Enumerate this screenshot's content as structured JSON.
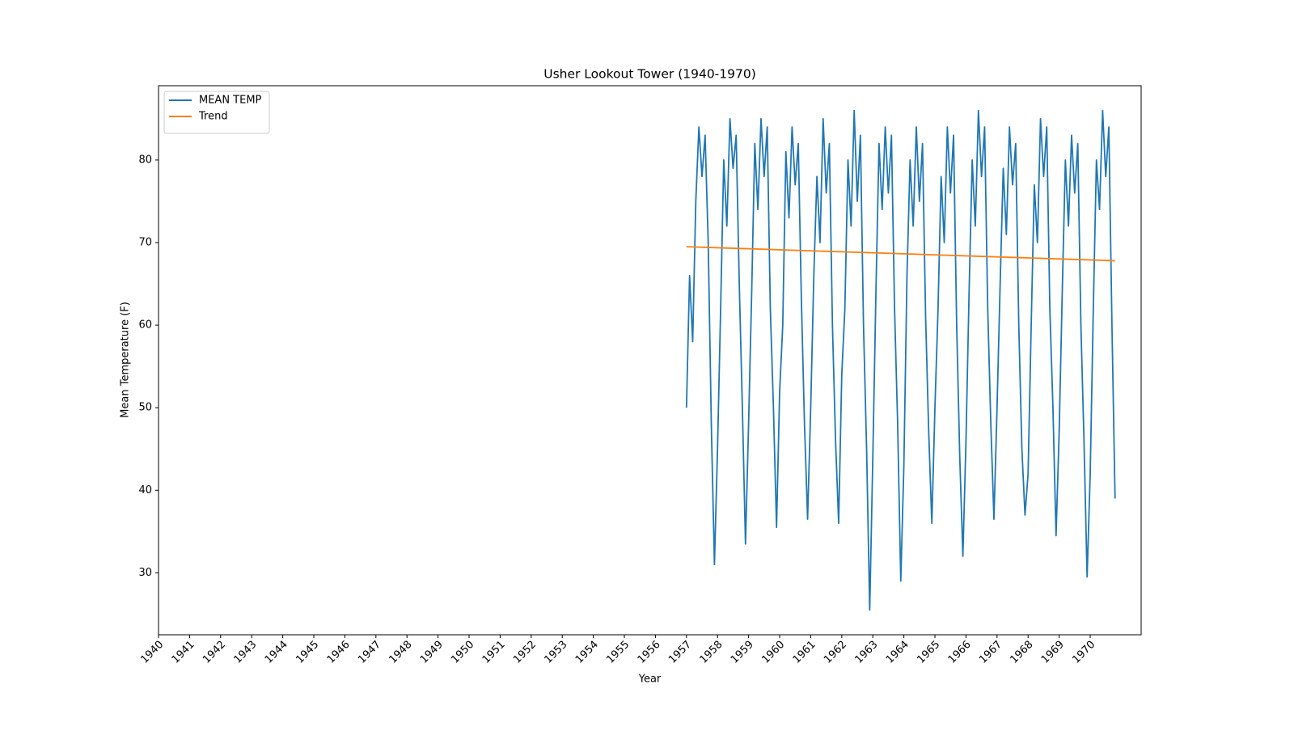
{
  "chart_data": {
    "type": "line",
    "title": "Usher Lookout Tower (1940-1970)",
    "xlabel": "Year",
    "ylabel": "Mean Temperature (F)",
    "xlim": [
      1940,
      1971.64
    ],
    "ylim": [
      22.5,
      89
    ],
    "xticks": [
      1940,
      1941,
      1942,
      1943,
      1944,
      1945,
      1946,
      1947,
      1948,
      1949,
      1950,
      1951,
      1952,
      1953,
      1954,
      1955,
      1956,
      1957,
      1958,
      1959,
      1960,
      1961,
      1962,
      1963,
      1964,
      1965,
      1966,
      1967,
      1968,
      1969,
      1970
    ],
    "yticks": [
      30,
      40,
      50,
      60,
      70,
      80
    ],
    "legend": "upper left",
    "series": [
      {
        "name": "MEAN TEMP",
        "color": "#1f77b4",
        "x": [
          1957.0,
          1957.1,
          1957.2,
          1957.3,
          1957.4,
          1957.5,
          1957.6,
          1957.7,
          1957.8,
          1957.9,
          1958.0,
          1958.1,
          1958.2,
          1958.3,
          1958.4,
          1958.5,
          1958.6,
          1958.7,
          1958.8,
          1958.9,
          1959.0,
          1959.1,
          1959.2,
          1959.3,
          1959.4,
          1959.5,
          1959.6,
          1959.7,
          1959.8,
          1959.9,
          1960.0,
          1960.1,
          1960.2,
          1960.3,
          1960.4,
          1960.5,
          1960.6,
          1960.7,
          1960.8,
          1960.9,
          1961.0,
          1961.1,
          1961.2,
          1961.3,
          1961.4,
          1961.5,
          1961.6,
          1961.7,
          1961.8,
          1961.9,
          1962.0,
          1962.1,
          1962.2,
          1962.3,
          1962.4,
          1962.5,
          1962.6,
          1962.7,
          1962.8,
          1962.9,
          1963.0,
          1963.1,
          1963.2,
          1963.3,
          1963.4,
          1963.5,
          1963.6,
          1963.7,
          1963.8,
          1963.9,
          1964.0,
          1964.1,
          1964.2,
          1964.3,
          1964.4,
          1964.5,
          1964.6,
          1964.7,
          1964.8,
          1964.9,
          1965.0,
          1965.1,
          1965.2,
          1965.3,
          1965.4,
          1965.5,
          1965.6,
          1965.7,
          1965.8,
          1965.9,
          1966.0,
          1966.1,
          1966.2,
          1966.3,
          1966.4,
          1966.5,
          1966.6,
          1966.7,
          1966.8,
          1966.9,
          1967.0,
          1967.1,
          1967.2,
          1967.3,
          1967.4,
          1967.5,
          1967.6,
          1967.7,
          1967.8,
          1967.9,
          1968.0,
          1968.1,
          1968.2,
          1968.3,
          1968.4,
          1968.5,
          1968.6,
          1968.7,
          1968.8,
          1968.9,
          1969.0,
          1969.1,
          1969.2,
          1969.3,
          1969.4,
          1969.5,
          1969.6,
          1969.7,
          1969.8,
          1969.9,
          1970.0,
          1970.1,
          1970.2,
          1970.3,
          1970.4,
          1970.5,
          1970.6,
          1970.7,
          1970.8
        ],
        "values": [
          50,
          66,
          58,
          75,
          84,
          78,
          83,
          70,
          48,
          31,
          45,
          62,
          80,
          72,
          85,
          79,
          83,
          65,
          50,
          33.5,
          48,
          64,
          82,
          74,
          85,
          78,
          84,
          62,
          50,
          35.5,
          52,
          60,
          81,
          73,
          84,
          77,
          82,
          63,
          48,
          36.5,
          50,
          66,
          78,
          70,
          85,
          76,
          82,
          60,
          46,
          36,
          54,
          62,
          80,
          72,
          86,
          75,
          83,
          60,
          45,
          25.5,
          44,
          64,
          82,
          74,
          84,
          76,
          83,
          62,
          48,
          29,
          43,
          66,
          80,
          72,
          84,
          75,
          82,
          61,
          47,
          36,
          50,
          62,
          78,
          70,
          84,
          76,
          83,
          60,
          44,
          32,
          46,
          64,
          80,
          72,
          86,
          78,
          84,
          62,
          48,
          36.5,
          50,
          65,
          79,
          71,
          84,
          77,
          82,
          60,
          45,
          37,
          42,
          60,
          77,
          70,
          85,
          78,
          84,
          62,
          50,
          34.5,
          47,
          64,
          80,
          72,
          83,
          76,
          82,
          60,
          46,
          29.5,
          42,
          62,
          80,
          74,
          86,
          78,
          84,
          60,
          39
        ]
      },
      {
        "name": "Trend",
        "color": "#ff7f0e",
        "x": [
          1957.0,
          1970.8
        ],
        "values": [
          69.5,
          67.8
        ]
      }
    ]
  }
}
